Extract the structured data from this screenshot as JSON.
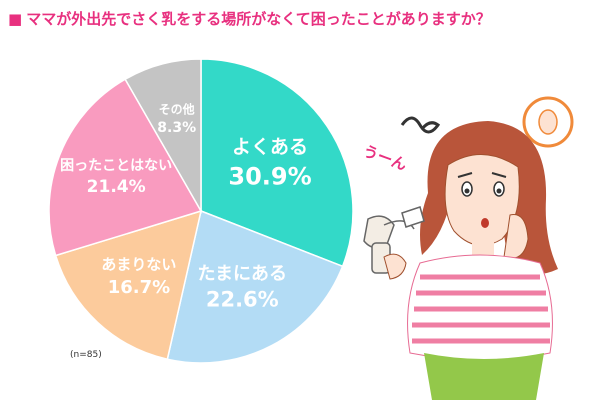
{
  "title": {
    "bullet": "■",
    "text": "ママが外出先でさく乳をする場所がなくて困ったことがありますか？"
  },
  "sample_note": "(n=85)",
  "chart_data": {
    "type": "pie",
    "title": "ママが外出先でさく乳をする場所がなくて困ったことがありますか？",
    "slices": [
      {
        "name": "よくある",
        "value": 30.9,
        "label": "30.9%",
        "color": "#33d9c8"
      },
      {
        "name": "たまにある",
        "value": 22.6,
        "label": "22.6%",
        "color": "#b3dcf5"
      },
      {
        "name": "あまりない",
        "value": 16.7,
        "label": "16.7%",
        "color": "#fccb9c"
      },
      {
        "name": "困ったことはない",
        "value": 21.4,
        "label": "21.4%",
        "color": "#f99bbf"
      },
      {
        "name": "その他",
        "value": 8.3,
        "label": "8.3%",
        "color": "#c4c4c4"
      }
    ],
    "start": "12 o'clock",
    "direction": "clockwise"
  },
  "illustration": {
    "exclaim": "うーん",
    "icon": "thinking-woman-with-breast-pump"
  }
}
